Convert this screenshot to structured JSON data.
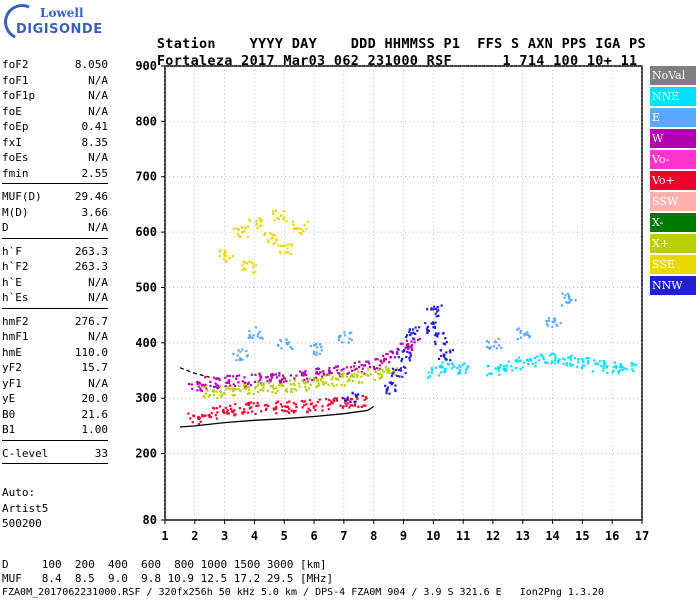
{
  "logo": {
    "line1": "Lowell",
    "line2": "DIGISONDE"
  },
  "header": {
    "row1": [
      "Station",
      "YYYY",
      "DAY",
      "DDD",
      "HHMMSS",
      "P1",
      "FFS",
      "S",
      "AXN",
      "PPS",
      "IGA",
      "PS"
    ],
    "row2": [
      "Fortaleza",
      "2017",
      "Mar03",
      "062",
      "231000",
      "RSF",
      "",
      "1",
      "714",
      "100",
      "10+",
      "11"
    ]
  },
  "params": [
    [
      {
        "k": "foF2",
        "v": "8.050"
      },
      {
        "k": "foF1",
        "v": "N/A"
      },
      {
        "k": "foF1p",
        "v": "N/A"
      },
      {
        "k": "foE",
        "v": "N/A"
      },
      {
        "k": "foEp",
        "v": "0.41"
      },
      {
        "k": "fxI",
        "v": "8.35"
      },
      {
        "k": "foEs",
        "v": "N/A"
      },
      {
        "k": "fmin",
        "v": "2.55"
      }
    ],
    [
      {
        "k": "MUF(D)",
        "v": "29.46"
      },
      {
        "k": "M(D)",
        "v": "3.66"
      },
      {
        "k": "D",
        "v": "N/A"
      }
    ],
    [
      {
        "k": "h`F",
        "v": "263.3"
      },
      {
        "k": "h`F2",
        "v": "263.3"
      },
      {
        "k": "h`E",
        "v": "N/A"
      },
      {
        "k": "h`Es",
        "v": "N/A"
      }
    ],
    [
      {
        "k": "hmF2",
        "v": "276.7"
      },
      {
        "k": "hmF1",
        "v": "N/A"
      },
      {
        "k": "hmE",
        "v": "110.0"
      },
      {
        "k": "yF2",
        "v": "15.7"
      },
      {
        "k": "yF1",
        "v": "N/A"
      },
      {
        "k": "yE",
        "v": "20.0"
      },
      {
        "k": "B0",
        "v": "21.6"
      },
      {
        "k": "B1",
        "v": "1.00"
      }
    ],
    [
      {
        "k": "C-level",
        "v": "33"
      }
    ]
  ],
  "auto": {
    "line1": "Auto:",
    "line2": "Artist5",
    "line3": "500200"
  },
  "legend": [
    {
      "label": "NoVal",
      "color": "#808080"
    },
    {
      "label": "NNE",
      "color": "#00e0ff"
    },
    {
      "label": "E",
      "color": "#5aa8ff"
    },
    {
      "label": "W",
      "color": "#b000b0"
    },
    {
      "label": "Vo-",
      "color": "#ff33cc"
    },
    {
      "label": "Vo+",
      "color": "#f00030"
    },
    {
      "label": "SSW",
      "color": "#ffb0b0"
    },
    {
      "label": "X-",
      "color": "#007a00"
    },
    {
      "label": "X+",
      "color": "#b8d000"
    },
    {
      "label": "SSE",
      "color": "#e8d800"
    },
    {
      "label": "NNW",
      "color": "#2020d0"
    }
  ],
  "footer": {
    "d_row": "D     100  200  400  600  800 1000 1500 3000 [km]",
    "muf_row": "MUF   8.4  8.5  9.0  9.8 10.9 12.5 17.2 29.5 [MHz]",
    "info_row": "FZA0M_2017062231000.RSF / 320fx256h 50 kHz 5.0 km / DPS-4 FZA0M 904 / 3.9 S 321.6 E   Ion2Png 1.3.20"
  },
  "chart_data": {
    "type": "scatter",
    "xlim": [
      1,
      17
    ],
    "ylim": [
      80,
      900
    ],
    "x_ticks": [
      1,
      2,
      3,
      4,
      5,
      6,
      7,
      8,
      9,
      10,
      11,
      12,
      13,
      14,
      15,
      16,
      17
    ],
    "y_ticks": [
      80,
      200,
      300,
      400,
      500,
      600,
      700,
      800,
      900
    ],
    "grid": true,
    "legend_position": "right",
    "series": [
      {
        "name": "Vo+",
        "color": "#f00030",
        "points": [
          [
            2.0,
            265
          ],
          [
            2.5,
            275
          ],
          [
            3.0,
            280
          ],
          [
            3.5,
            282
          ],
          [
            4.0,
            284
          ],
          [
            4.5,
            285
          ],
          [
            5.0,
            286
          ],
          [
            5.5,
            287
          ],
          [
            6.0,
            289
          ],
          [
            6.5,
            291
          ],
          [
            7.0,
            294
          ],
          [
            7.5,
            297
          ]
        ]
      },
      {
        "name": "W",
        "color": "#b000b0",
        "points": [
          [
            2.0,
            325
          ],
          [
            2.5,
            330
          ],
          [
            3.0,
            332
          ],
          [
            3.5,
            334
          ],
          [
            4.0,
            336
          ],
          [
            4.5,
            338
          ],
          [
            5.0,
            340
          ],
          [
            5.5,
            342
          ],
          [
            6.0,
            345
          ],
          [
            6.5,
            349
          ],
          [
            7.0,
            352
          ],
          [
            7.5,
            357
          ],
          [
            8.0,
            365
          ],
          [
            8.5,
            378
          ],
          [
            9.0,
            390
          ],
          [
            9.3,
            400
          ]
        ]
      },
      {
        "name": "X+",
        "color": "#b8d000",
        "points": [
          [
            2.5,
            312
          ],
          [
            3.0,
            315
          ],
          [
            3.5,
            318
          ],
          [
            4.0,
            320
          ],
          [
            4.5,
            322
          ],
          [
            5.0,
            324
          ],
          [
            5.5,
            326
          ],
          [
            6.0,
            329
          ],
          [
            6.5,
            333
          ],
          [
            7.0,
            336
          ],
          [
            7.5,
            340
          ],
          [
            8.0,
            345
          ],
          [
            8.5,
            352
          ]
        ]
      },
      {
        "name": "SSE",
        "color": "#e8d800",
        "points": [
          [
            3.0,
            560
          ],
          [
            3.5,
            600
          ],
          [
            4.0,
            620
          ],
          [
            4.5,
            590
          ],
          [
            5.0,
            570
          ],
          [
            5.5,
            610
          ],
          [
            3.8,
            540
          ],
          [
            4.8,
            630
          ]
        ]
      },
      {
        "name": "NNE",
        "color": "#00e0ff",
        "points": [
          [
            10,
            350
          ],
          [
            10.5,
            360
          ],
          [
            11,
            355
          ],
          [
            12,
            352
          ],
          [
            12.5,
            360
          ],
          [
            13,
            365
          ],
          [
            13.5,
            370
          ],
          [
            14,
            372
          ],
          [
            14.5,
            368
          ],
          [
            15,
            365
          ],
          [
            15.5,
            360
          ],
          [
            16,
            358
          ],
          [
            16.5,
            355
          ]
        ]
      },
      {
        "name": "NNW",
        "color": "#2020d0",
        "points": [
          [
            8.8,
            350
          ],
          [
            9.0,
            380
          ],
          [
            9.3,
            420
          ],
          [
            9.8,
            430
          ],
          [
            10.0,
            460
          ],
          [
            10.2,
            410
          ],
          [
            10.4,
            380
          ],
          [
            8.5,
            320
          ],
          [
            7.2,
            305
          ]
        ]
      },
      {
        "name": "E",
        "color": "#5aa8ff",
        "points": [
          [
            3.5,
            380
          ],
          [
            4.0,
            420
          ],
          [
            5.0,
            400
          ],
          [
            6.0,
            390
          ],
          [
            7.0,
            410
          ],
          [
            12.0,
            400
          ],
          [
            13.0,
            420
          ],
          [
            14.0,
            440
          ],
          [
            14.5,
            480
          ]
        ]
      }
    ],
    "annotations": [
      {
        "type": "fit_curve",
        "points": [
          [
            1.5,
            248
          ],
          [
            2.0,
            250
          ],
          [
            3,
            256
          ],
          [
            4,
            260
          ],
          [
            5,
            263
          ],
          [
            6,
            267
          ],
          [
            7,
            272
          ],
          [
            7.8,
            278
          ],
          [
            8.0,
            285
          ]
        ]
      },
      {
        "type": "fit_curve",
        "points": [
          [
            1.5,
            355
          ],
          [
            2.0,
            345
          ],
          [
            2.5,
            338
          ]
        ]
      }
    ]
  }
}
